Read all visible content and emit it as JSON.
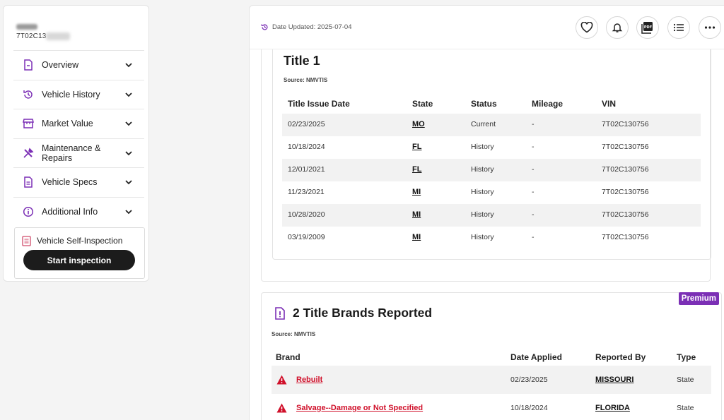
{
  "sidebar": {
    "vin_partial": "7T02C13",
    "items": [
      {
        "label": "Overview",
        "icon": "document-icon"
      },
      {
        "label": "Vehicle History",
        "icon": "history-icon"
      },
      {
        "label": "Market Value",
        "icon": "store-icon"
      },
      {
        "label": "Maintenance & Repairs",
        "icon": "wrench-icon"
      },
      {
        "label": "Vehicle Specs",
        "icon": "spec-sheet-icon"
      },
      {
        "label": "Additional Info",
        "icon": "info-icon"
      }
    ],
    "inspection": {
      "title": "Vehicle Self-Inspection",
      "button": "Start inspection"
    }
  },
  "topbar": {
    "date_updated": "Date Updated: 2025-07-04",
    "actions": [
      "heart-icon",
      "bell-icon",
      "pdf-icon",
      "list-icon",
      "more-icon"
    ]
  },
  "title_section": {
    "title": "Title 1",
    "source": "Source: NMVTIS",
    "columns": [
      "Title Issue Date",
      "State",
      "Status",
      "Mileage",
      "VIN"
    ],
    "rows": [
      {
        "date": "02/23/2025",
        "state": "MO",
        "status": "Current",
        "mileage": "-",
        "vin": "7T02C130756"
      },
      {
        "date": "10/18/2024",
        "state": "FL",
        "status": "History",
        "mileage": "-",
        "vin": "7T02C130756"
      },
      {
        "date": "12/01/2021",
        "state": "FL",
        "status": "History",
        "mileage": "-",
        "vin": "7T02C130756"
      },
      {
        "date": "11/23/2021",
        "state": "MI",
        "status": "History",
        "mileage": "-",
        "vin": "7T02C130756"
      },
      {
        "date": "10/28/2020",
        "state": "MI",
        "status": "History",
        "mileage": "-",
        "vin": "7T02C130756"
      },
      {
        "date": "03/19/2009",
        "state": "MI",
        "status": "History",
        "mileage": "-",
        "vin": "7T02C130756"
      }
    ]
  },
  "brands_section": {
    "badge": "Premium",
    "title": "2 Title Brands Reported",
    "source": "Source: NMVTIS",
    "columns": [
      "Brand",
      "Date Applied",
      "Reported By",
      "Type"
    ],
    "rows": [
      {
        "brand": "Rebuilt",
        "date": "02/23/2025",
        "reported_by": "MISSOURI",
        "type": "State"
      },
      {
        "brand": "Salvage--Damage or Not Specified",
        "date": "10/18/2024",
        "reported_by": "FLORIDA",
        "type": "State"
      }
    ]
  },
  "colors": {
    "accent": "#7b2fb5",
    "danger": "#d0102a",
    "button_dark": "#1c1c1c"
  }
}
